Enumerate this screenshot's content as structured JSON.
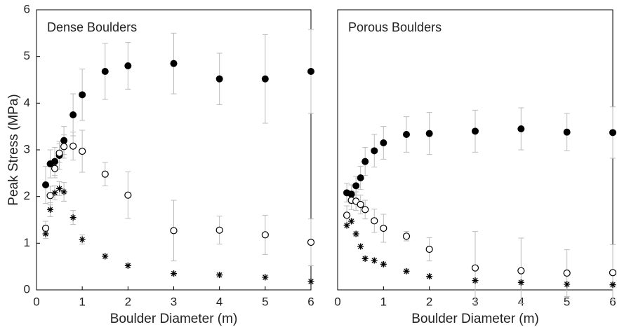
{
  "chart_data": [
    {
      "type": "scatter",
      "title": "Dense Boulders",
      "xlabel": "Boulder Diameter (m)",
      "ylabel": "Peak Stress (MPa)",
      "x": [
        0.2,
        0.3,
        0.4,
        0.5,
        0.6,
        0.8,
        1,
        1.5,
        2,
        3,
        4,
        5,
        6
      ],
      "xlim": [
        0,
        6
      ],
      "ylim": [
        0,
        6
      ],
      "xticks": [
        0,
        1,
        2,
        3,
        4,
        5,
        6
      ],
      "yticks": [
        0,
        1,
        2,
        3,
        4,
        5,
        6
      ],
      "error_color": "#bdbdbd",
      "series": [
        {
          "marker": "filled-circle",
          "color": "#000000",
          "values": [
            2.25,
            2.7,
            2.75,
            2.88,
            3.2,
            3.75,
            4.18,
            4.68,
            4.8,
            4.85,
            4.52,
            4.52,
            4.68
          ],
          "errors": [
            0.4,
            0.3,
            0.3,
            0.3,
            0.3,
            0.45,
            0.55,
            0.6,
            0.5,
            0.65,
            0.55,
            0.95,
            0.9
          ]
        },
        {
          "marker": "open-circle",
          "color": "#000000",
          "values": [
            1.32,
            2.02,
            2.6,
            2.93,
            3.07,
            3.08,
            2.97,
            2.48,
            2.03,
            1.27,
            1.28,
            1.18,
            1.02
          ],
          "errors": [
            0.15,
            0.2,
            0.2,
            0.2,
            0.25,
            0.3,
            0.45,
            0.25,
            0.5,
            0.65,
            0.3,
            0.42,
            0.5
          ]
        },
        {
          "marker": "asterisk",
          "color": "#000000",
          "values": [
            1.2,
            1.72,
            2.08,
            2.17,
            2.1,
            1.55,
            1.08,
            0.72,
            0.52,
            0.35,
            0.32,
            0.27,
            0.18
          ],
          "errors": [
            0.1,
            0.15,
            0.15,
            0.15,
            0.2,
            0.15,
            0.1,
            0.05,
            0.05,
            0.05,
            0.05,
            0.05,
            0.05
          ]
        }
      ]
    },
    {
      "type": "scatter",
      "title": "Porous Boulders",
      "xlabel": "Boulder Diameter (m)",
      "x": [
        0.2,
        0.3,
        0.4,
        0.5,
        0.6,
        0.8,
        1,
        1.5,
        2,
        3,
        4,
        5,
        6
      ],
      "xlim": [
        0,
        6
      ],
      "ylim": [
        0,
        6
      ],
      "xticks": [
        0,
        1,
        2,
        3,
        4,
        5,
        6
      ],
      "error_color": "#bdbdbd",
      "series": [
        {
          "marker": "filled-circle",
          "color": "#000000",
          "values": [
            2.08,
            2.05,
            2.23,
            2.4,
            2.75,
            2.98,
            3.15,
            3.33,
            3.35,
            3.4,
            3.45,
            3.38,
            3.37
          ],
          "errors": [
            0.2,
            0.2,
            0.2,
            0.25,
            0.3,
            0.35,
            0.35,
            0.38,
            0.45,
            0.45,
            0.45,
            0.4,
            0.55
          ]
        },
        {
          "marker": "open-circle",
          "color": "#000000",
          "values": [
            1.6,
            1.92,
            1.9,
            1.83,
            1.72,
            1.48,
            1.32,
            1.15,
            0.87,
            0.47,
            0.41,
            0.36,
            0.37
          ],
          "errors": [
            0.2,
            0.2,
            0.2,
            0.2,
            0.2,
            0.25,
            0.3,
            0.1,
            0.25,
            0.78,
            0.7,
            0.5,
            0.6
          ]
        },
        {
          "marker": "asterisk",
          "color": "#000000",
          "values": [
            1.38,
            1.47,
            1.2,
            0.93,
            0.67,
            0.63,
            0.55,
            0.4,
            0.29,
            0.2,
            0.16,
            0.12,
            0.11
          ],
          "errors": [
            0.05,
            0.05,
            0.05,
            0.05,
            0.05,
            0.05,
            0.05,
            0.05,
            0.05,
            0.05,
            0.05,
            0.05,
            0.05
          ]
        }
      ]
    }
  ]
}
